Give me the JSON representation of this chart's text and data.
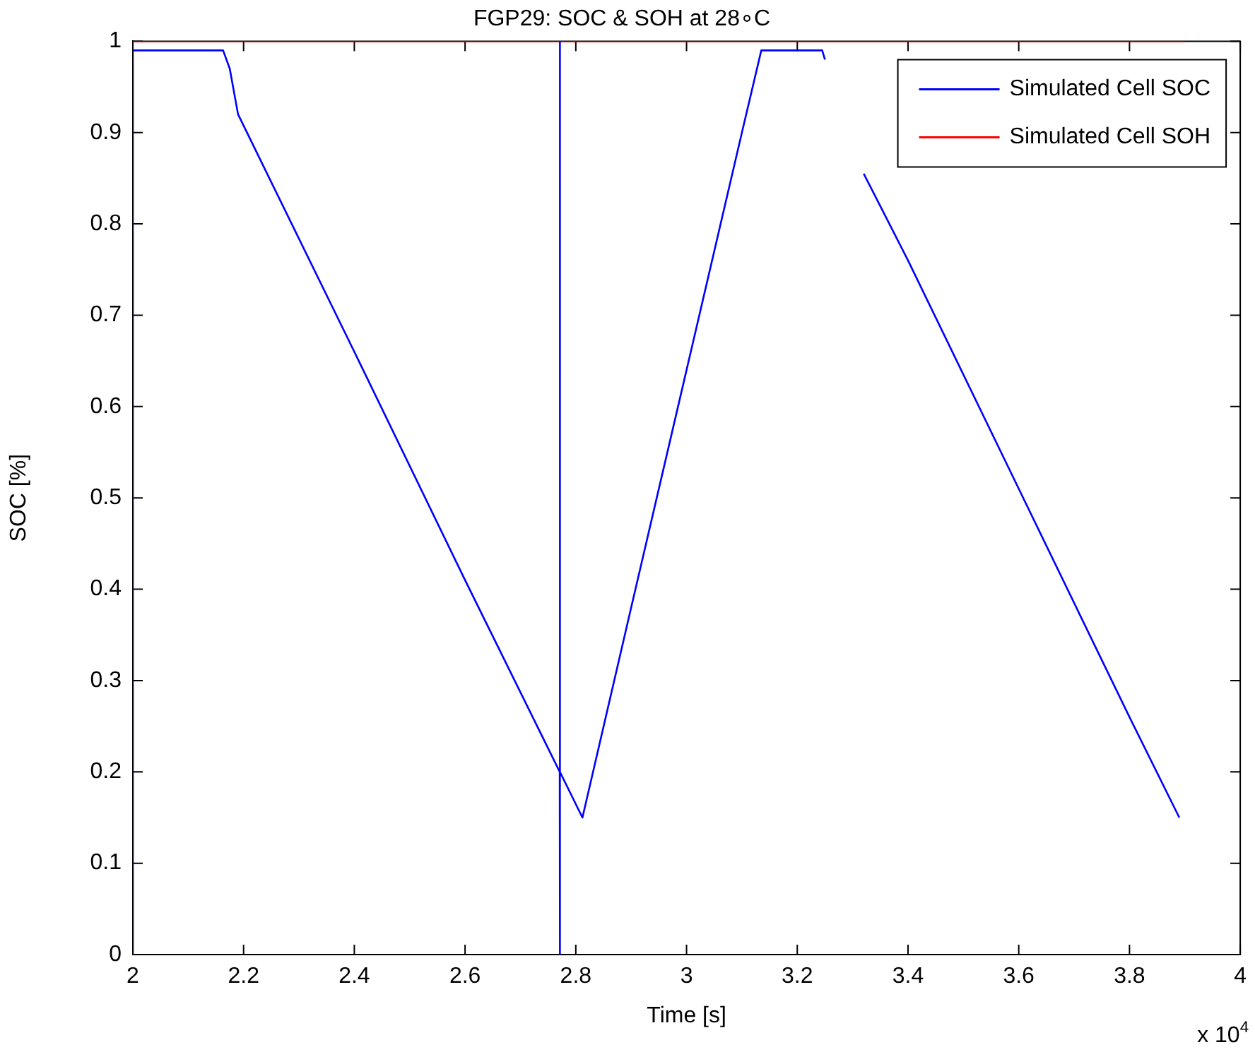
{
  "chart_data": {
    "type": "line",
    "title": "FGP29: SOC & SOH at 28∘C",
    "xlabel": "Time [s]",
    "ylabel": "SOC [%]",
    "annotations": [
      "x 10$^{4}$"
    ],
    "xlim": [
      2,
      4
    ],
    "xticks": [
      2,
      2.2,
      2.4,
      2.6,
      2.8,
      3,
      3.2,
      3.4,
      3.6,
      3.8,
      4
    ],
    "ylim": [
      0,
      1
    ],
    "yticks": [
      0,
      0.1,
      0.2,
      0.3,
      0.4,
      0.5,
      0.6,
      0.7,
      0.8,
      0.9,
      1
    ],
    "grid": false,
    "legend": "top right",
    "marker": "none",
    "line_style": "solid",
    "series": [
      {
        "name": "Simulated Cell SOC",
        "color": "#0000ff",
        "x": [
          2,
          2,
          2.163,
          2.175,
          2.19,
          2.4,
          2.6,
          2.771,
          2.771,
          2.771,
          2.772,
          2.812,
          2.9,
          3.0,
          3.1,
          3.135,
          3.245,
          3.25,
          3.285,
          3.32,
          3.4,
          3.6,
          3.8,
          3.89
        ],
        "values": [
          0,
          0.99,
          0.99,
          0.97,
          0.92,
          0.66,
          0.41,
          0.2,
          0,
          1,
          0.2,
          0.15,
          0.38,
          0.64,
          0.9,
          0.99,
          0.99,
          0.98,
          null,
          0.855,
          0.76,
          0.51,
          0.26,
          0.15
        ]
      },
      {
        "name": "Simulated Cell SOH",
        "color": "#ff0000",
        "x": [
          2,
          3.9
        ],
        "values": [
          1,
          1
        ]
      }
    ]
  }
}
